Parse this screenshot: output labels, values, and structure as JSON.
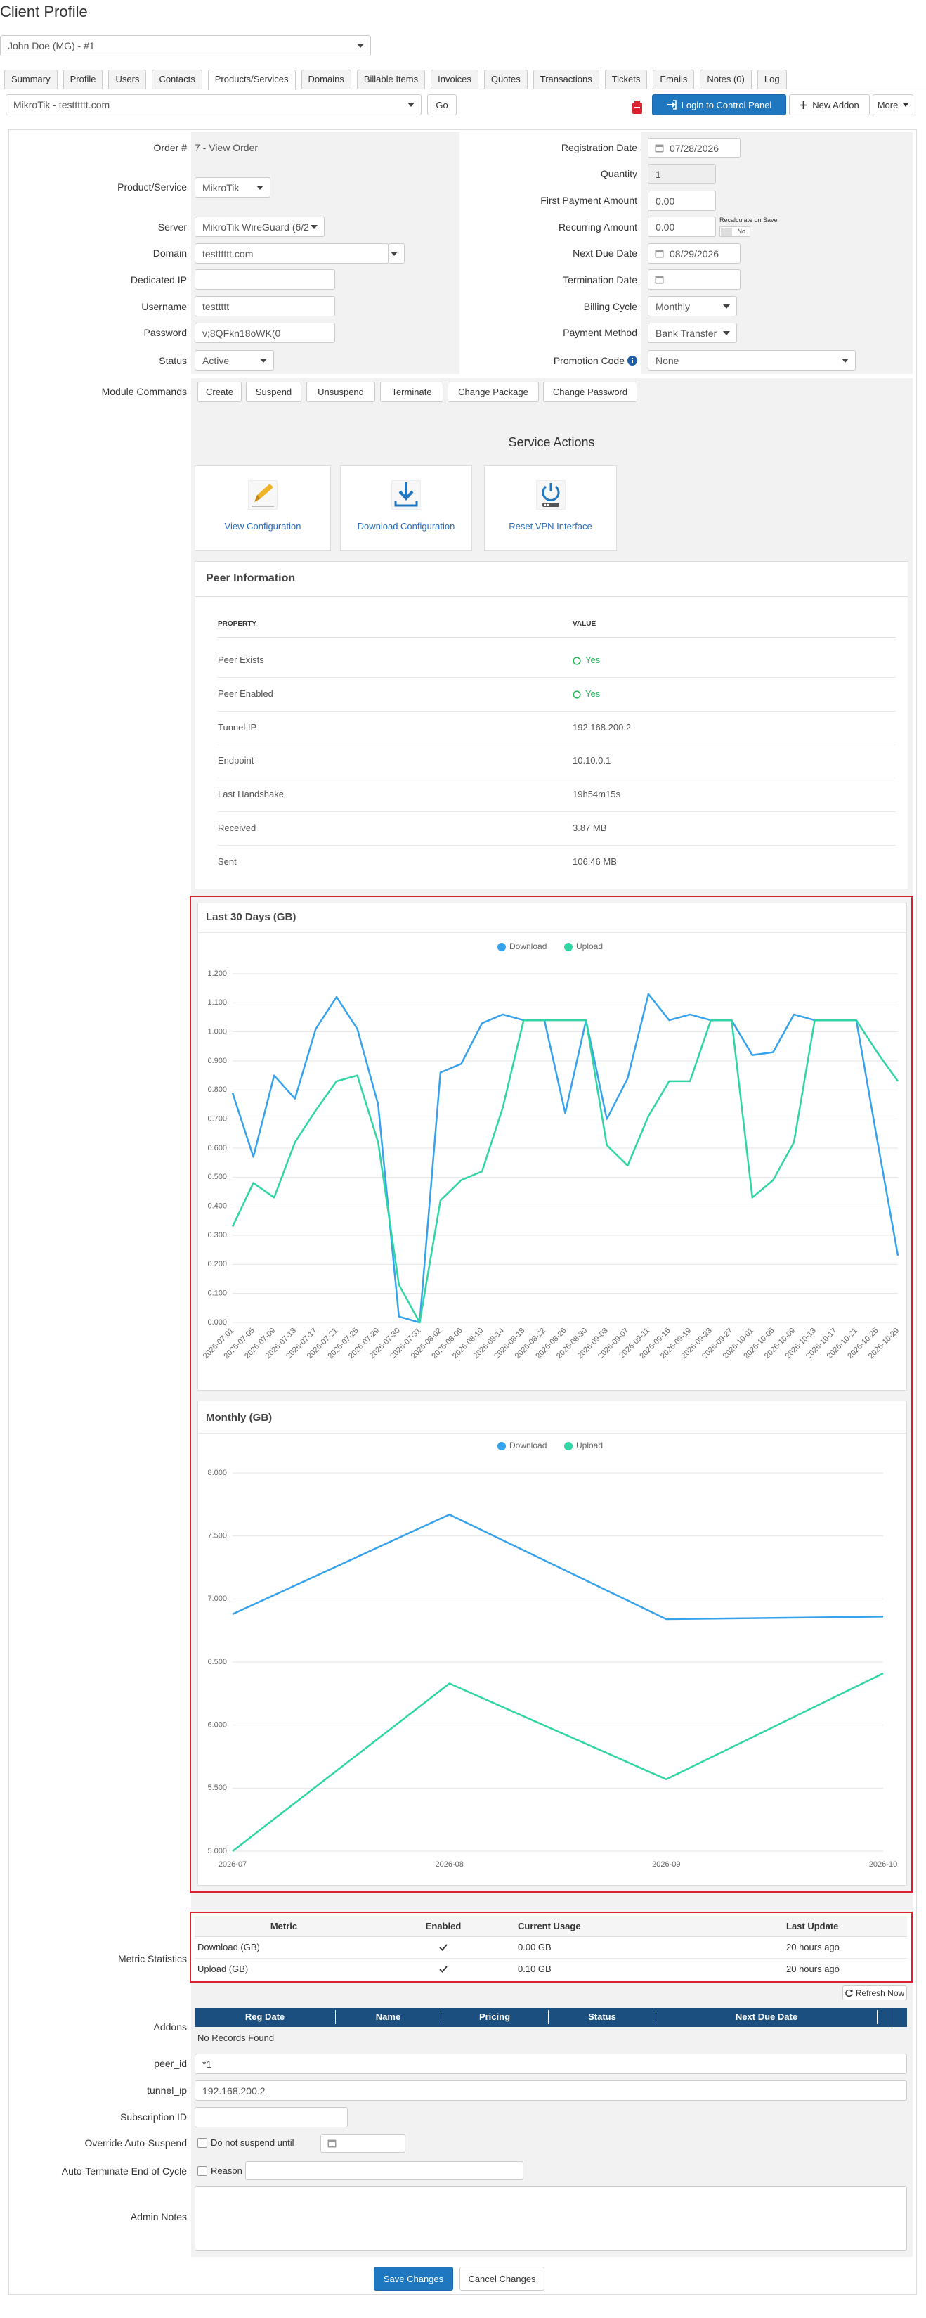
{
  "header": {
    "title": "Client Profile",
    "client": "John Doe (MG) - #1"
  },
  "tabs": [
    {
      "label": "Summary"
    },
    {
      "label": "Profile"
    },
    {
      "label": "Users"
    },
    {
      "label": "Contacts"
    },
    {
      "label": "Products/Services",
      "active": true
    },
    {
      "label": "Domains"
    },
    {
      "label": "Billable Items"
    },
    {
      "label": "Invoices"
    },
    {
      "label": "Quotes"
    },
    {
      "label": "Transactions"
    },
    {
      "label": "Tickets"
    },
    {
      "label": "Emails"
    },
    {
      "label": "Notes (0)"
    },
    {
      "label": "Log"
    }
  ],
  "toolbar": {
    "product": "MikroTik - testttttt.com",
    "go": "Go",
    "login": "Login to Control Panel",
    "new_addon": "New Addon",
    "more": "More"
  },
  "fields": {
    "order": {
      "label": "Order #",
      "value": "7 - View Order"
    },
    "product": {
      "label": "Product/Service",
      "value": "MikroTik"
    },
    "server": {
      "label": "Server",
      "value": "MikroTik WireGuard (6/2"
    },
    "domain": {
      "label": "Domain",
      "value": "testttttt.com"
    },
    "dedicated_ip": {
      "label": "Dedicated IP"
    },
    "username": {
      "label": "Username",
      "value": "testtttt"
    },
    "password": {
      "label": "Password",
      "value": "v;8QFkn18oWK(0"
    },
    "status": {
      "label": "Status",
      "value": "Active"
    },
    "registration_date": {
      "label": "Registration Date",
      "value": "07/28/2026"
    },
    "quantity": {
      "label": "Quantity",
      "value": 1
    },
    "first_payment_amount": {
      "label": "First Payment Amount",
      "value": "0.00"
    },
    "recurring_amount": {
      "label": "Recurring Amount",
      "value": "0.00",
      "recalculate": "Recalculate on Save",
      "recalculate_state": "No"
    },
    "next_due_date": {
      "label": "Next Due Date",
      "value": "08/29/2026"
    },
    "termination_date": {
      "label": "Termination Date"
    },
    "billing_cycle": {
      "label": "Billing Cycle",
      "value": "Monthly"
    },
    "payment_method": {
      "label": "Payment Method",
      "value": "Bank Transfer"
    },
    "promotion_code": {
      "label": "Promotion Code",
      "value": "None"
    }
  },
  "module_commands": {
    "label": "Module Commands",
    "buttons": [
      "Create",
      "Suspend",
      "Unsuspend",
      "Terminate",
      "Change Package",
      "Change Password"
    ]
  },
  "service_actions": {
    "title": "Service Actions",
    "actions": [
      "View Configuration",
      "Download Configuration",
      "Reset VPN Interface"
    ]
  },
  "peer_info": {
    "title": "Peer Information",
    "columns": [
      "PROPERTY",
      "VALUE"
    ],
    "rows": [
      {
        "property": "Peer Exists",
        "value": "Yes",
        "indicator": true
      },
      {
        "property": "Peer Enabled",
        "value": "Yes",
        "indicator": true
      },
      {
        "property": "Tunnel IP",
        "value": "192.168.200.2"
      },
      {
        "property": "Endpoint",
        "value": "10.10.0.1"
      },
      {
        "property": "Last Handshake",
        "value": "19h54m15s"
      },
      {
        "property": "Received",
        "value": "3.87 MB"
      },
      {
        "property": "Sent",
        "value": "106.46 MB"
      }
    ]
  },
  "chart_data": [
    {
      "type": "line",
      "title": "Last 30 Days (GB)",
      "legend": "top",
      "grid": true,
      "categories": [
        "2026-07-01",
        "2026-07-05",
        "2026-07-09",
        "2026-07-13",
        "2026-07-17",
        "2026-07-21",
        "2026-07-25",
        "2026-07-29",
        "2026-07-30",
        "2026-07-31",
        "2026-08-02",
        "2026-08-06",
        "2026-08-10",
        "2026-08-14",
        "2026-08-18",
        "2026-08-22",
        "2026-08-26",
        "2026-08-30",
        "2026-09-03",
        "2026-09-07",
        "2026-09-11",
        "2026-09-15",
        "2026-09-19",
        "2026-09-23",
        "2026-09-27",
        "2026-10-01",
        "2026-10-05",
        "2026-10-09",
        "2026-10-13",
        "2026-10-17",
        "2026-10-21",
        "2026-10-25",
        "2026-10-29"
      ],
      "series": [
        {
          "name": "Download",
          "color": "#36a2eb",
          "values": [
            0.79,
            0.57,
            0.85,
            0.77,
            1.01,
            1.12,
            1.01,
            0.75,
            0.02,
            0,
            0.86,
            0.89,
            1.03,
            1.06,
            1.04,
            1.04,
            0.72,
            1.04,
            0.7,
            0.84,
            1.13,
            1.04,
            1.06,
            1.04,
            1.04,
            0.92,
            0.93,
            1.06,
            1.04,
            1.04,
            1.04,
            0.63,
            0.23
          ]
        },
        {
          "name": "Upload",
          "color": "#2fd6a3",
          "values": [
            0.33,
            0.48,
            0.43,
            0.62,
            0.73,
            0.83,
            0.85,
            0.62,
            0.13,
            0,
            0.42,
            0.49,
            0.52,
            0.74,
            1.04,
            1.04,
            1.04,
            1.04,
            0.61,
            0.54,
            0.71,
            0.83,
            0.83,
            1.04,
            1.04,
            0.43,
            0.49,
            0.62,
            1.04,
            1.04,
            1.04,
            0.93,
            0.83
          ]
        }
      ],
      "ylim": [
        0,
        1.2
      ],
      "yticks": [
        {
          "value": 0,
          "label": "0.000"
        },
        {
          "value": 0.1,
          "label": "0.100"
        },
        {
          "value": 0.2,
          "label": "0.200"
        },
        {
          "value": 0.3,
          "label": "0.300"
        },
        {
          "value": 0.4,
          "label": "0.400"
        },
        {
          "value": 0.5,
          "label": "0.500"
        },
        {
          "value": 0.6,
          "label": "0.600"
        },
        {
          "value": 0.7,
          "label": "0.700"
        },
        {
          "value": 0.8,
          "label": "0.800"
        },
        {
          "value": 0.9,
          "label": "0.900"
        },
        {
          "value": 1,
          "label": "1.000"
        },
        {
          "value": 1.1,
          "label": "1.100"
        },
        {
          "value": 1.2,
          "label": "1.200"
        }
      ]
    },
    {
      "type": "line",
      "title": "Monthly (GB)",
      "legend": "top",
      "grid": true,
      "categories": [
        "2026-07",
        "2026-08",
        "2026-09",
        "2026-10"
      ],
      "series": [
        {
          "name": "Download",
          "color": "#36a2eb",
          "values": [
            6.88,
            7.67,
            6.84,
            6.86
          ]
        },
        {
          "name": "Upload",
          "color": "#2fd6a3",
          "values": [
            5.0,
            6.33,
            5.57,
            6.41
          ]
        }
      ],
      "ylim": [
        5,
        8
      ],
      "yticks": [
        {
          "value": 5,
          "label": "5.000"
        },
        {
          "value": 5.5,
          "label": "5.500"
        },
        {
          "value": 6,
          "label": "6.000"
        },
        {
          "value": 6.5,
          "label": "6.500"
        },
        {
          "value": 7,
          "label": "7.000"
        },
        {
          "value": 7.5,
          "label": "7.500"
        },
        {
          "value": 8,
          "label": "8.000"
        }
      ]
    }
  ],
  "metric_statistics": {
    "label": "Metric Statistics",
    "columns": [
      "Metric",
      "Enabled",
      "Current Usage",
      "Last Update"
    ],
    "rows": [
      {
        "metric": "Download (GB)",
        "enabled": true,
        "usage": "0.00 GB",
        "updated": "20 hours ago"
      },
      {
        "metric": "Upload (GB)",
        "enabled": true,
        "usage": "0.10 GB",
        "updated": "20 hours ago"
      }
    ],
    "refresh": "Refresh Now"
  },
  "addons": {
    "label": "Addons",
    "columns": [
      "Reg Date",
      "Name",
      "Pricing",
      "Status",
      "Next Due Date"
    ],
    "empty": "No Records Found"
  },
  "custom_fields": [
    {
      "label": "peer_id",
      "value": "*1"
    },
    {
      "label": "tunnel_ip",
      "value": "192.168.200.2"
    },
    {
      "label": "Subscription ID"
    }
  ],
  "override": {
    "label": "Override Auto-Suspend",
    "checkbox": "Do not suspend until"
  },
  "auto_terminate": {
    "label": "Auto-Terminate End of Cycle",
    "checkbox": "Reason"
  },
  "admin_notes": {
    "label": "Admin Notes"
  },
  "actions": {
    "save": "Save Changes",
    "cancel": "Cancel Changes"
  }
}
